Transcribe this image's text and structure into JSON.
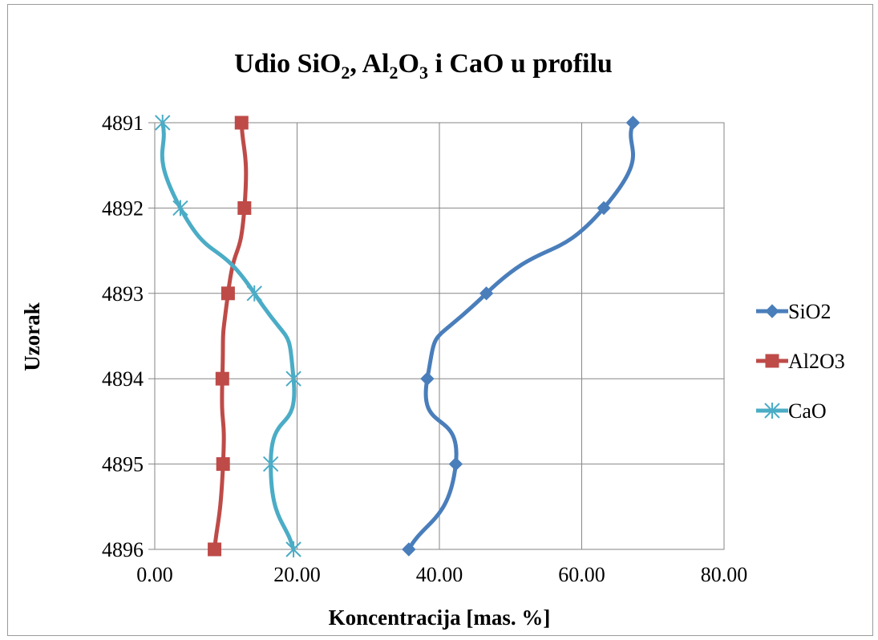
{
  "chart_data": {
    "type": "line",
    "orientation": "horizontal-values",
    "title": {
      "parts": [
        {
          "t": "Udio SiO",
          "sub": false
        },
        {
          "t": "2",
          "sub": true
        },
        {
          "t": ",  Al",
          "sub": false
        },
        {
          "t": "2",
          "sub": true
        },
        {
          "t": "O",
          "sub": false
        },
        {
          "t": "3",
          "sub": true
        },
        {
          "t": " i CaO u profilu",
          "sub": false
        }
      ]
    },
    "xlabel": "Koncentracija [mas. %]",
    "ylabel": "Uzorak",
    "xlim": [
      0,
      80
    ],
    "xticks": [
      "0.00",
      "20.00",
      "40.00",
      "60.00",
      "80.00"
    ],
    "categories": [
      "4891",
      "4892",
      "4893",
      "4894",
      "4895",
      "4896"
    ],
    "grid": true,
    "smooth": true,
    "legend_position": "right",
    "series": [
      {
        "name": "SiO2",
        "color": "#4a7ebb",
        "marker": "diamond",
        "values": [
          67.2,
          63.1,
          46.6,
          38.3,
          42.3,
          35.7
        ]
      },
      {
        "name": "Al2O3",
        "color": "#be4b48",
        "marker": "square",
        "values": [
          12.2,
          12.6,
          10.3,
          9.5,
          9.6,
          8.4
        ]
      },
      {
        "name": "CaO",
        "color": "#4bacc6",
        "marker": "star",
        "values": [
          1.1,
          3.6,
          14.0,
          19.5,
          16.3,
          19.5
        ]
      }
    ]
  }
}
